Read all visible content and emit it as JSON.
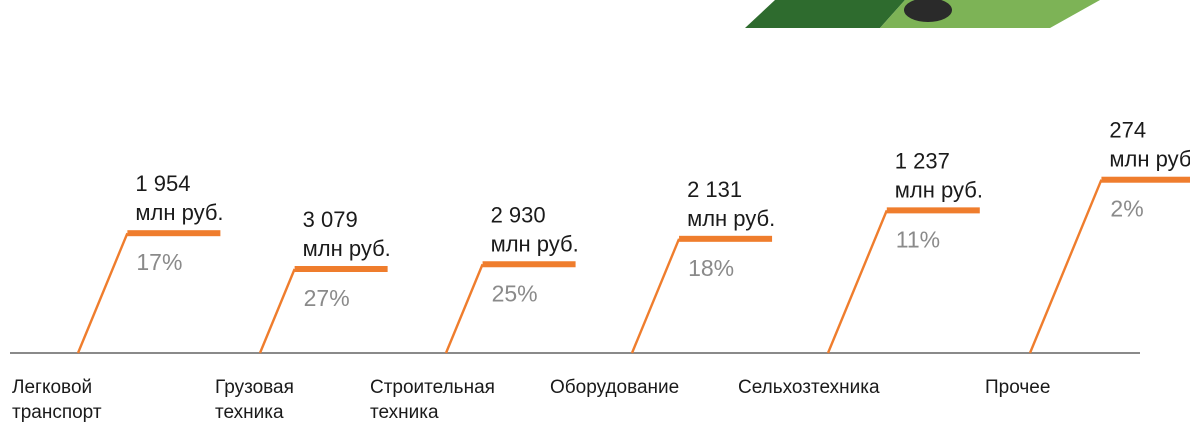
{
  "colors": {
    "accent": "#ef7d2d",
    "baseline": "#8a8a8a",
    "value_text": "#1a1a1a",
    "percent_text": "#8a8a8a",
    "photo_dark": "#2e6b2e",
    "photo_light": "#7db356"
  },
  "chart_data": {
    "type": "bar",
    "unit": "млн руб.",
    "categories": [
      [
        "Легковой",
        "транспорт"
      ],
      [
        "Грузовая",
        "техника"
      ],
      [
        "Строительная",
        "техника"
      ],
      [
        "Оборудование"
      ],
      [
        "Сельхозтехника"
      ],
      [
        "Прочее"
      ]
    ],
    "values": [
      1954,
      3079,
      2930,
      2131,
      1237,
      274
    ],
    "value_labels": [
      "1 954",
      "3 079",
      "2 930",
      "2 131",
      "1 237",
      "274"
    ],
    "percent_labels": [
      "17%",
      "27%",
      "25%",
      "18%",
      "11%",
      "2%"
    ],
    "ylim": [
      0,
      3079
    ]
  }
}
